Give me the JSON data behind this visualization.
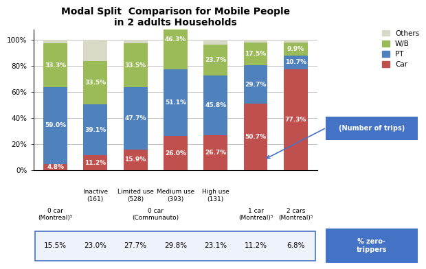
{
  "title": "Modal Split  Comparison for Mobile People\nin 2 adults Households",
  "categories": [
    "0 car\n(Montreal)⁵",
    "Inactive\n(161)",
    "Limited use\n(528)",
    "Medium use\n(393)",
    "High use\n(131)",
    "1 car\n(Montreal)⁵",
    "2 cars\n(Montreal)⁵"
  ],
  "car_values": [
    4.8,
    11.2,
    15.9,
    26.0,
    26.7,
    50.7,
    77.3
  ],
  "pt_values": [
    59.0,
    39.1,
    47.7,
    51.1,
    45.8,
    29.7,
    10.7
  ],
  "wb_values": [
    33.3,
    33.5,
    33.5,
    46.3,
    23.7,
    17.5,
    9.9
  ],
  "others_values": [
    2.9,
    16.2,
    2.9,
    0.0,
    3.8,
    2.1,
    2.1
  ],
  "car_color": "#C0504D",
  "pt_color": "#4F81BD",
  "wb_color": "#9BBB59",
  "others_color": "#D9D9C8",
  "zero_trippers": [
    "15.5%",
    "23.0%",
    "27.7%",
    "29.8%",
    "23.1%",
    "11.2%",
    "6.8%"
  ],
  "legend_labels": [
    "Others",
    "W/B",
    "PT",
    "Car"
  ],
  "note_trips": "(Number of trips)",
  "note_zero": "% zero-\ntrippers",
  "background_color": "#FFFFFF",
  "bar_width": 0.6,
  "communauto_label": "0 car\n(Communauto)",
  "note_box_color": "#4472C4",
  "note_box_text_color": "#FFFFFF",
  "table_border_color": "#4472C4",
  "table_bg_color": "#EEF3FB"
}
